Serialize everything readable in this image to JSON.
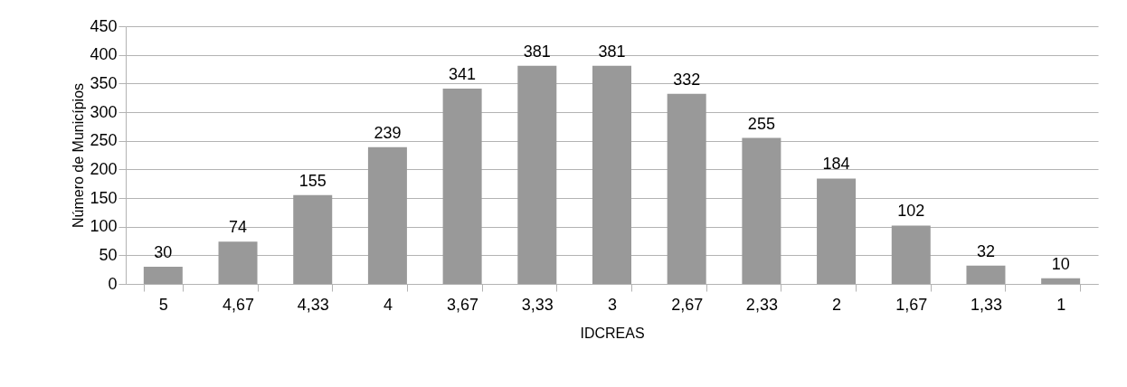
{
  "chart_data": {
    "type": "bar",
    "xlabel": "IDCREAS",
    "ylabel": "Número de Municípios",
    "categories": [
      "5",
      "4,67",
      "4,33",
      "4",
      "3,67",
      "3,33",
      "3",
      "2,67",
      "2,33",
      "2",
      "1,67",
      "1,33",
      "1"
    ],
    "values": [
      30,
      74,
      155,
      239,
      341,
      381,
      381,
      332,
      255,
      184,
      102,
      32,
      10
    ],
    "color": "#999999",
    "ylim": [
      0,
      450
    ],
    "yticks": [
      0,
      50,
      100,
      150,
      200,
      250,
      300,
      350,
      400,
      450
    ],
    "grid": "y",
    "data_labels": true
  }
}
